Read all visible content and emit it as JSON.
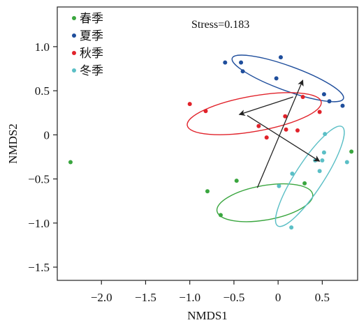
{
  "chart_data": {
    "type": "scatter",
    "xlabel": "NMDS1",
    "ylabel": "NMDS2",
    "xlim": [
      -2.5,
      0.9
    ],
    "ylim": [
      -1.65,
      1.45
    ],
    "xticks": [
      -2.0,
      -1.5,
      -1.0,
      -0.5,
      0,
      0.5
    ],
    "xtick_labels": [
      "−2.0",
      "−1.5",
      "−1.0",
      "−0.5",
      "0",
      "0.5"
    ],
    "yticks": [
      1.0,
      0.5,
      0,
      -0.5,
      -1.0,
      -1.5
    ],
    "ytick_labels": [
      "1.0",
      "0.5",
      "0",
      "−0.5",
      "−1.0",
      "−1.5"
    ],
    "annotation": "Stress=0.183",
    "legend_position": "top-left",
    "series": [
      {
        "name": "春季",
        "color": "#3aa63f",
        "points": [
          [
            -2.35,
            -0.31
          ],
          [
            -0.8,
            -0.64
          ],
          [
            -0.47,
            -0.52
          ],
          [
            -0.65,
            -0.91
          ],
          [
            0.3,
            -0.55
          ],
          [
            0.83,
            -0.19
          ]
        ],
        "ellipse": {
          "cx": -0.15,
          "cy": -0.77,
          "rx": 0.55,
          "ry": 0.195,
          "angle": 10
        }
      },
      {
        "name": "夏季",
        "color": "#1f4e9c",
        "points": [
          [
            -0.6,
            0.82
          ],
          [
            -0.42,
            0.82
          ],
          [
            -0.4,
            0.72
          ],
          [
            0.03,
            0.88
          ],
          [
            -0.02,
            0.64
          ],
          [
            0.52,
            0.46
          ],
          [
            0.58,
            0.38
          ],
          [
            0.73,
            0.33
          ]
        ],
        "ellipse": {
          "cx": 0.11,
          "cy": 0.64,
          "rx": 0.67,
          "ry": 0.14,
          "angle": -20
        }
      },
      {
        "name": "秋季",
        "color": "#e1222a",
        "points": [
          [
            -1.0,
            0.35
          ],
          [
            -0.82,
            0.27
          ],
          [
            -0.22,
            0.1
          ],
          [
            -0.13,
            -0.03
          ],
          [
            0.09,
            0.06
          ],
          [
            0.08,
            0.21
          ],
          [
            0.22,
            0.05
          ],
          [
            0.28,
            0.43
          ],
          [
            0.47,
            0.26
          ]
        ],
        "ellipse": {
          "cx": -0.27,
          "cy": 0.24,
          "rx": 0.77,
          "ry": 0.2,
          "angle": 10
        }
      },
      {
        "name": "冬季",
        "color": "#5bbfc6",
        "points": [
          [
            0.53,
            0.01
          ],
          [
            0.52,
            -0.2
          ],
          [
            0.5,
            -0.29
          ],
          [
            0.42,
            -0.29
          ],
          [
            0.47,
            -0.41
          ],
          [
            0.16,
            -0.44
          ],
          [
            0.01,
            -0.58
          ],
          [
            0.78,
            -0.31
          ],
          [
            0.15,
            -1.05
          ]
        ],
        "ellipse": {
          "cx": 0.36,
          "cy": -0.47,
          "rx": 0.67,
          "ry": 0.16,
          "angle": 57
        }
      }
    ],
    "arrows": [
      {
        "from": [
          -0.235,
          -0.6
        ],
        "to": [
          0.28,
          0.62
        ]
      },
      {
        "from": [
          0.17,
          0.43
        ],
        "to": [
          -0.44,
          0.23
        ]
      },
      {
        "from": [
          -0.35,
          0.22
        ],
        "to": [
          0.47,
          -0.3
        ]
      }
    ]
  }
}
